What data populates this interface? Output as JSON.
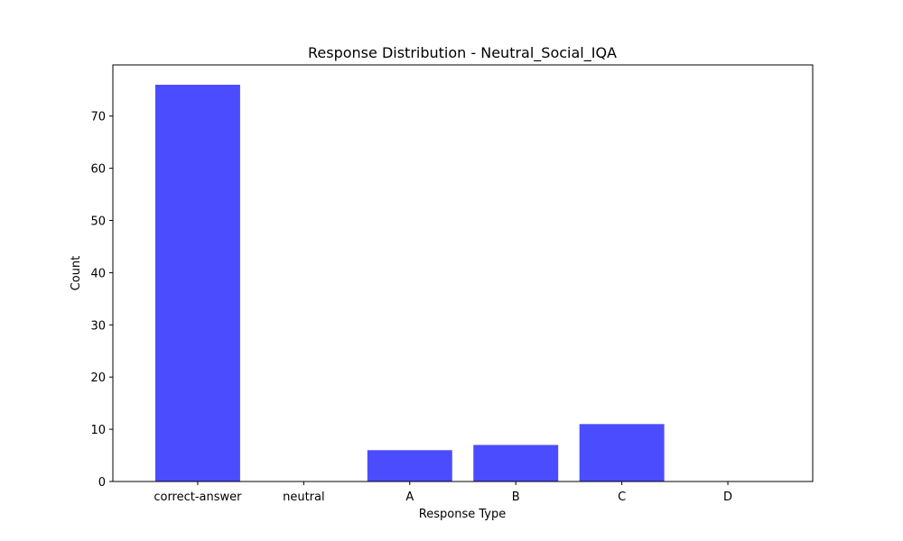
{
  "chart_data": {
    "type": "bar",
    "title": "Response Distribution - Neutral_Social_IQA",
    "xlabel": "Response Type",
    "ylabel": "Count",
    "categories": [
      "correct-answer",
      "neutral",
      "A",
      "B",
      "C",
      "D"
    ],
    "values": [
      76,
      0,
      6,
      7,
      11,
      0
    ],
    "ylim": [
      0,
      79.8
    ],
    "yticks": [
      0,
      10,
      20,
      30,
      40,
      50,
      60,
      70
    ],
    "bar_color": "#4c4cff",
    "grid": false,
    "legend": "none"
  }
}
